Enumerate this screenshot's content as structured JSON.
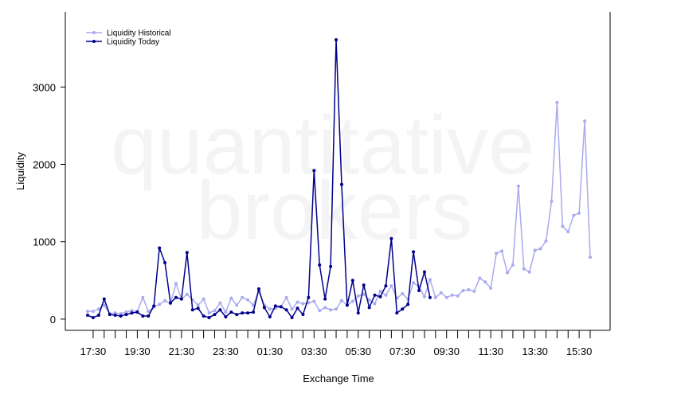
{
  "chart_data": {
    "type": "line",
    "watermark": [
      "quantitative",
      "brokers"
    ],
    "xlabel": "Exchange Time",
    "ylabel": "Liquidity",
    "x": [
      "17:15",
      "17:30",
      "17:45",
      "18:00",
      "18:15",
      "18:30",
      "18:45",
      "19:00",
      "19:15",
      "19:30",
      "19:45",
      "20:00",
      "20:15",
      "20:30",
      "20:45",
      "21:00",
      "21:15",
      "21:30",
      "21:45",
      "22:00",
      "22:15",
      "22:30",
      "22:45",
      "23:00",
      "23:15",
      "23:30",
      "23:45",
      "00:00",
      "00:15",
      "00:30",
      "00:45",
      "01:00",
      "01:15",
      "01:30",
      "01:45",
      "02:00",
      "02:15",
      "02:30",
      "02:45",
      "03:00",
      "03:15",
      "03:30",
      "03:45",
      "04:00",
      "04:15",
      "04:30",
      "04:45",
      "05:00",
      "05:15",
      "05:30",
      "05:45",
      "06:00",
      "06:15",
      "06:30",
      "06:45",
      "07:00",
      "07:15",
      "07:30",
      "07:45",
      "08:00",
      "08:15",
      "08:30",
      "08:45",
      "09:00",
      "09:15",
      "09:30",
      "09:45",
      "10:00",
      "10:15",
      "10:30",
      "10:45",
      "11:00",
      "11:15",
      "11:30",
      "11:45",
      "12:00",
      "12:15",
      "12:30",
      "12:45",
      "13:00",
      "13:15",
      "13:30",
      "13:45",
      "14:00",
      "14:15",
      "14:30",
      "14:45",
      "15:00",
      "15:15",
      "15:30",
      "15:45",
      "16:00"
    ],
    "xticks": [
      "17:30",
      "19:30",
      "21:30",
      "23:30",
      "01:30",
      "03:30",
      "05:30",
      "07:30",
      "09:30",
      "11:30",
      "13:30",
      "15:30"
    ],
    "series": [
      {
        "name": "Liquidity Historical",
        "color": "#aaaaee",
        "values": [
          100,
          100,
          130,
          180,
          70,
          80,
          70,
          90,
          110,
          100,
          280,
          100,
          160,
          190,
          240,
          200,
          460,
          260,
          320,
          250,
          180,
          260,
          80,
          110,
          210,
          90,
          270,
          180,
          280,
          250,
          180,
          360,
          180,
          130,
          140,
          160,
          280,
          130,
          220,
          200,
          210,
          230,
          110,
          150,
          120,
          130,
          240,
          180,
          230,
          300,
          320,
          250,
          200,
          360,
          310,
          430,
          270,
          330,
          260,
          470,
          420,
          290,
          510,
          280,
          340,
          280,
          310,
          300,
          370,
          380,
          360,
          530,
          480,
          400,
          850,
          880,
          600,
          700,
          1720,
          650,
          610,
          890,
          910,
          1010,
          1520,
          2800,
          1200,
          1130,
          1340,
          1370,
          2560,
          800
        ]
      },
      {
        "name": "Liquidity Today",
        "color": "#00008b",
        "values": [
          50,
          20,
          50,
          260,
          60,
          50,
          40,
          60,
          80,
          90,
          40,
          40,
          170,
          920,
          730,
          210,
          280,
          260,
          860,
          120,
          140,
          40,
          20,
          60,
          120,
          30,
          90,
          60,
          80,
          80,
          90,
          390,
          150,
          30,
          170,
          160,
          120,
          20,
          140,
          60,
          280,
          1920,
          700,
          260,
          680,
          3610,
          1740,
          180,
          500,
          80,
          440,
          150,
          310,
          290,
          430,
          1040,
          80,
          130,
          190,
          870,
          370,
          610,
          280,
          null,
          null,
          null,
          null,
          null,
          null,
          null,
          null,
          null,
          null,
          null,
          null,
          null,
          null,
          null,
          null,
          null,
          null,
          null,
          null,
          null,
          null,
          null,
          null,
          null,
          null,
          null,
          null,
          null
        ]
      }
    ],
    "ylim": [
      -145,
      3970
    ],
    "yticks": [
      0,
      1000,
      2000,
      3000
    ],
    "legend": "top-left"
  }
}
